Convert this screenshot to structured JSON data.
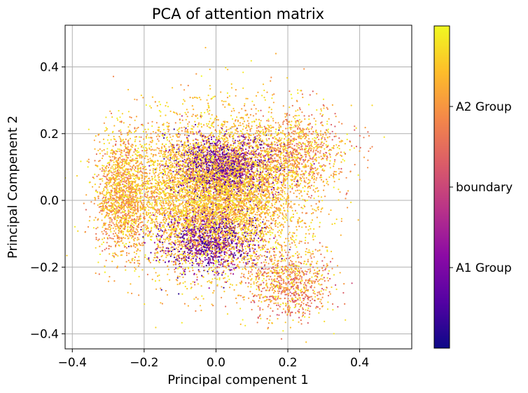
{
  "chart_data": {
    "type": "scatter",
    "title": "PCA of attention matrix",
    "xlabel": "Principal compenent 1",
    "ylabel": "Principal Compenent 2",
    "xlim": [
      -0.42,
      0.545
    ],
    "ylim": [
      -0.445,
      0.525
    ],
    "xticks": [
      -0.4,
      -0.2,
      0.0,
      0.2,
      0.4
    ],
    "xtick_labels": [
      "−0.4",
      "−0.2",
      "0.0",
      "0.2",
      "0.4"
    ],
    "yticks": [
      -0.4,
      -0.2,
      0.0,
      0.2,
      0.4
    ],
    "ytick_labels": [
      "−0.4",
      "−0.2",
      "0.0",
      "0.2",
      "0.4"
    ],
    "grid": true,
    "colormap": "plasma",
    "colormap_stops": [
      "#0d0887",
      "#5302a3",
      "#8b0aa5",
      "#b83289",
      "#db5c68",
      "#f48849",
      "#febd2a",
      "#f0f921"
    ],
    "colorbar": {
      "min": 0.0,
      "max": 1.0,
      "ticks": [
        {
          "value": 0.25,
          "label": "A1 Group"
        },
        {
          "value": 0.5,
          "label": "boundary"
        },
        {
          "value": 0.75,
          "label": "A2 Group"
        }
      ]
    },
    "approx_point_count": 12000,
    "clusters": [
      {
        "name": "A2 Group dense core",
        "center": [
          0.0,
          0.02
        ],
        "spread": [
          0.16,
          0.15
        ],
        "share": 0.55,
        "color_range": [
          0.7,
          1.0
        ]
      },
      {
        "name": "A1 Group upper-center",
        "center": [
          0.02,
          0.1
        ],
        "spread": [
          0.09,
          0.06
        ],
        "share": 0.1,
        "color_range": [
          0.05,
          0.4
        ]
      },
      {
        "name": "A1 Group lower-center",
        "center": [
          -0.02,
          -0.12
        ],
        "spread": [
          0.09,
          0.06
        ],
        "share": 0.08,
        "color_range": [
          0.05,
          0.4
        ]
      },
      {
        "name": "A2 Group left lobe",
        "center": [
          -0.26,
          0.02
        ],
        "spread": [
          0.05,
          0.12
        ],
        "share": 0.12,
        "color_range": [
          0.6,
          1.0
        ]
      },
      {
        "name": "A2 Group lower-right tail",
        "center": [
          0.2,
          -0.25
        ],
        "spread": [
          0.08,
          0.07
        ],
        "share": 0.07,
        "color_range": [
          0.5,
          1.0
        ]
      },
      {
        "name": "A2 Group upper-right",
        "center": [
          0.22,
          0.15
        ],
        "spread": [
          0.1,
          0.08
        ],
        "share": 0.08,
        "color_range": [
          0.55,
          1.0
        ]
      }
    ]
  }
}
